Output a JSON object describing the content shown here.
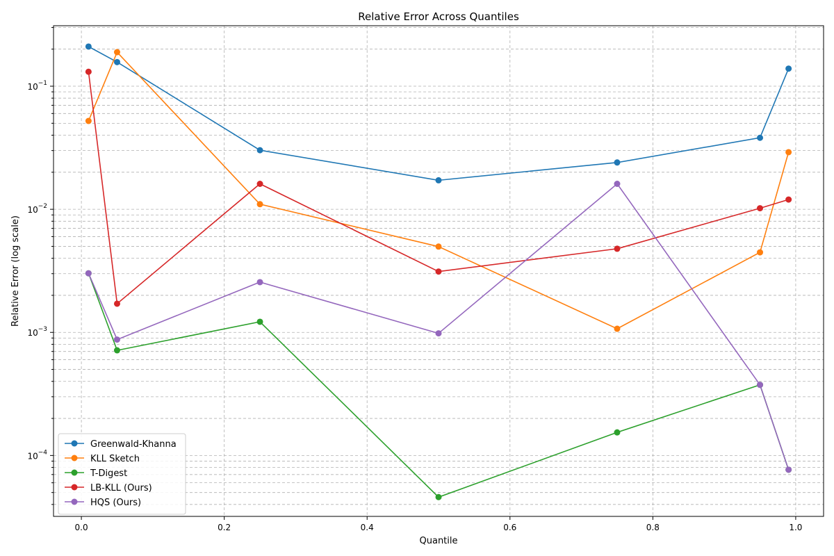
{
  "chart_data": {
    "type": "line",
    "title": "Relative Error Across Quantiles",
    "xlabel": "Quantile",
    "ylabel": "Relative Error (log scale)",
    "xscale": "linear",
    "yscale": "log",
    "xlim": [
      -0.039,
      1.039
    ],
    "ylim": [
      3.2e-05,
      0.31
    ],
    "xticks": [
      0.0,
      0.2,
      0.4,
      0.6,
      0.8,
      1.0
    ],
    "xtick_labels": [
      "0.0",
      "0.2",
      "0.4",
      "0.6",
      "0.8",
      "1.0"
    ],
    "yticks": [
      0.0001,
      0.001,
      0.01,
      0.1
    ],
    "ytick_labels": [
      {
        "base": "10",
        "exp": "−4"
      },
      {
        "base": "10",
        "exp": "−3"
      },
      {
        "base": "10",
        "exp": "−2"
      },
      {
        "base": "10",
        "exp": "−1"
      }
    ],
    "grid": true,
    "grid_style": "dashed",
    "legend_position": "lower-left",
    "x": [
      0.01,
      0.05,
      0.25,
      0.5,
      0.75,
      0.95,
      0.99
    ],
    "series": [
      {
        "name": "Greenwald-Khanna",
        "color": "#1f77b4",
        "values": [
          0.21,
          0.157,
          0.0302,
          0.0172,
          0.024,
          0.0381,
          0.139
        ]
      },
      {
        "name": "KLL Sketch",
        "color": "#ff7f0e",
        "values": [
          0.0522,
          0.189,
          0.011,
          0.00498,
          0.00107,
          0.00447,
          0.0291
        ]
      },
      {
        "name": "T-Digest",
        "color": "#2ca02c",
        "values": [
          0.00302,
          0.000715,
          0.00122,
          4.59e-05,
          0.000154,
          0.000375,
          7.66e-05
        ]
      },
      {
        "name": "LB-KLL (Ours)",
        "color": "#d62728",
        "values": [
          0.131,
          0.00171,
          0.0161,
          0.00312,
          0.00478,
          0.0102,
          0.012
        ]
      },
      {
        "name": "HQS (Ours)",
        "color": "#9467bd",
        "values": [
          0.00302,
          0.000874,
          0.00256,
          0.000983,
          0.0161,
          0.000375,
          7.66e-05
        ]
      }
    ]
  }
}
